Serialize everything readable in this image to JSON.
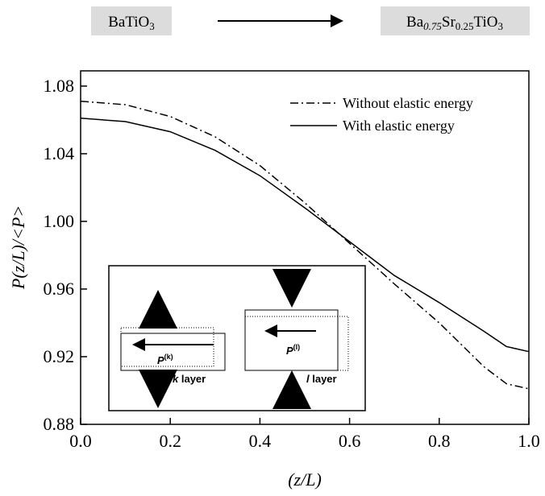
{
  "chart_data": {
    "type": "line",
    "top_labels": {
      "start": [
        "BaTiO",
        "3"
      ],
      "end": [
        "Ba",
        "0.75",
        "Sr",
        "0.25",
        "TiO",
        "3"
      ]
    },
    "xlabel": "(z/L)",
    "ylabel": "P(z/L)/<P>",
    "x": [
      0,
      0.1,
      0.2,
      0.3,
      0.4,
      0.5,
      0.6,
      0.7,
      0.8,
      0.9,
      0.95,
      1.0
    ],
    "series": [
      {
        "name": "Without elastic energy",
        "color": "#000000",
        "style": "dashdot",
        "values": [
          1.071,
          1.069,
          1.062,
          1.05,
          1.033,
          1.011,
          0.987,
          0.963,
          0.94,
          0.914,
          0.904,
          0.901
        ]
      },
      {
        "name": "With elastic energy",
        "color": "#000000",
        "style": "solid",
        "values": [
          1.061,
          1.059,
          1.053,
          1.042,
          1.027,
          1.008,
          0.988,
          0.968,
          0.952,
          0.935,
          0.926,
          0.923
        ]
      }
    ],
    "xlim": [
      0,
      1.0
    ],
    "ylim": [
      0.88,
      1.089
    ],
    "xticks": [
      {
        "value": 0,
        "label": "0.0"
      },
      0.2,
      0.4,
      0.6,
      0.8,
      {
        "value": 1,
        "label": "1.0"
      }
    ],
    "yticks": [
      0.88,
      0.92,
      0.96,
      {
        "value": 1,
        "label": "1.00"
      },
      1.04,
      1.08
    ],
    "legend": "upper right",
    "inset": {
      "k_vector": [
        "P",
        "(k)"
      ],
      "k_layer": [
        "k",
        " layer"
      ],
      "l_vector": [
        "P",
        "(l)"
      ],
      "l_layer": [
        "l",
        " layer"
      ]
    }
  }
}
